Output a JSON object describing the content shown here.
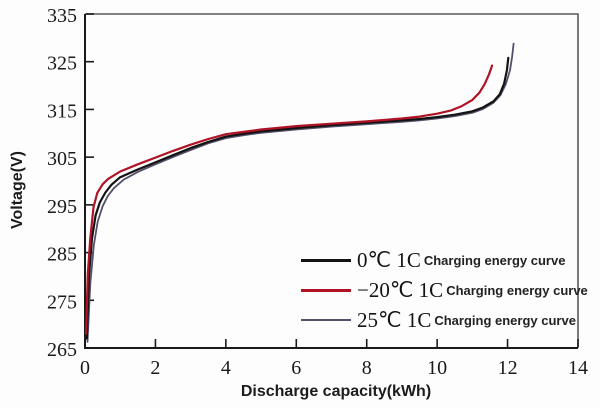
{
  "figure": {
    "background": "#fdfdfd",
    "axis_color": "#1a1a1a",
    "frame_color": "#5a5a5a"
  },
  "chart_data": {
    "type": "line",
    "title": "",
    "xlabel": "Discharge capacity(kWh)",
    "ylabel": "Voltage(V)",
    "xlim": [
      0,
      14
    ],
    "ylim": [
      265,
      335
    ],
    "xticks": [
      0,
      2,
      4,
      6,
      8,
      10,
      12,
      14
    ],
    "yticks": [
      265,
      275,
      285,
      295,
      305,
      315,
      325,
      335
    ],
    "grid": false,
    "legend_position": "lower right",
    "legend_suffix": "Charging energy curve",
    "series": [
      {
        "name": "25℃ 1C",
        "suffix": "Charging energy curve",
        "color": "#55506a",
        "width": 1.8,
        "legend_sample_thickness": 2,
        "legend_order": 3,
        "points": [
          [
            0.07,
            266.3
          ],
          [
            0.15,
            278.5
          ],
          [
            0.25,
            286.5
          ],
          [
            0.36,
            291.5
          ],
          [
            0.5,
            294.7
          ],
          [
            0.65,
            296.9
          ],
          [
            0.82,
            298.5
          ],
          [
            1.1,
            300.3
          ],
          [
            1.5,
            301.9
          ],
          [
            2.0,
            303.5
          ],
          [
            2.5,
            305.0
          ],
          [
            3.0,
            306.5
          ],
          [
            3.5,
            307.9
          ],
          [
            4.0,
            309.0
          ],
          [
            4.5,
            309.6
          ],
          [
            5.0,
            310.1
          ],
          [
            6.0,
            310.8
          ],
          [
            7.0,
            311.4
          ],
          [
            8.0,
            311.9
          ],
          [
            9.0,
            312.4
          ],
          [
            9.5,
            312.7
          ],
          [
            10.0,
            313.1
          ],
          [
            10.5,
            313.6
          ],
          [
            11.0,
            314.3
          ],
          [
            11.3,
            315.1
          ],
          [
            11.6,
            316.4
          ],
          [
            11.8,
            318.0
          ],
          [
            11.95,
            320.3
          ],
          [
            12.07,
            323.2
          ],
          [
            12.13,
            326.0
          ],
          [
            12.17,
            328.8
          ]
        ]
      },
      {
        "name": "0℃ 1C",
        "suffix": "Charging energy curve",
        "color": "#131313",
        "width": 2.2,
        "legend_sample_thickness": 3,
        "legend_order": 1,
        "points": [
          [
            0.05,
            267.0
          ],
          [
            0.11,
            280.0
          ],
          [
            0.2,
            288.0
          ],
          [
            0.3,
            292.8
          ],
          [
            0.42,
            295.5
          ],
          [
            0.58,
            297.6
          ],
          [
            0.75,
            299.2
          ],
          [
            1.0,
            300.8
          ],
          [
            1.5,
            302.4
          ],
          [
            2.0,
            303.9
          ],
          [
            2.5,
            305.4
          ],
          [
            3.0,
            306.9
          ],
          [
            3.5,
            308.2
          ],
          [
            4.0,
            309.3
          ],
          [
            4.5,
            309.9
          ],
          [
            5.0,
            310.4
          ],
          [
            6.0,
            311.1
          ],
          [
            7.0,
            311.7
          ],
          [
            8.0,
            312.2
          ],
          [
            9.0,
            312.7
          ],
          [
            9.5,
            313.0
          ],
          [
            10.0,
            313.4
          ],
          [
            10.5,
            313.9
          ],
          [
            11.0,
            314.6
          ],
          [
            11.3,
            315.4
          ],
          [
            11.6,
            316.7
          ],
          [
            11.78,
            318.2
          ],
          [
            11.9,
            320.4
          ],
          [
            11.98,
            323.2
          ],
          [
            12.02,
            325.8
          ]
        ]
      },
      {
        "name": "−20℃ 1C",
        "suffix": "Charging energy curve",
        "color": "#b01226",
        "width": 2.2,
        "legend_sample_thickness": 3,
        "legend_order": 2,
        "points": [
          [
            0.03,
            268.0
          ],
          [
            0.08,
            280.5
          ],
          [
            0.15,
            288.0
          ],
          [
            0.24,
            294.5
          ],
          [
            0.35,
            297.5
          ],
          [
            0.5,
            299.3
          ],
          [
            0.65,
            300.4
          ],
          [
            1.0,
            302.0
          ],
          [
            1.5,
            303.5
          ],
          [
            2.0,
            304.9
          ],
          [
            2.5,
            306.3
          ],
          [
            3.0,
            307.6
          ],
          [
            3.5,
            308.8
          ],
          [
            4.0,
            309.8
          ],
          [
            4.5,
            310.3
          ],
          [
            5.0,
            310.8
          ],
          [
            6.0,
            311.5
          ],
          [
            7.0,
            312.0
          ],
          [
            8.0,
            312.5
          ],
          [
            9.0,
            313.1
          ],
          [
            9.5,
            313.5
          ],
          [
            10.0,
            314.1
          ],
          [
            10.4,
            314.8
          ],
          [
            10.7,
            315.7
          ],
          [
            11.0,
            317.0
          ],
          [
            11.2,
            318.5
          ],
          [
            11.35,
            320.3
          ],
          [
            11.47,
            322.3
          ],
          [
            11.56,
            324.2
          ]
        ]
      }
    ]
  }
}
